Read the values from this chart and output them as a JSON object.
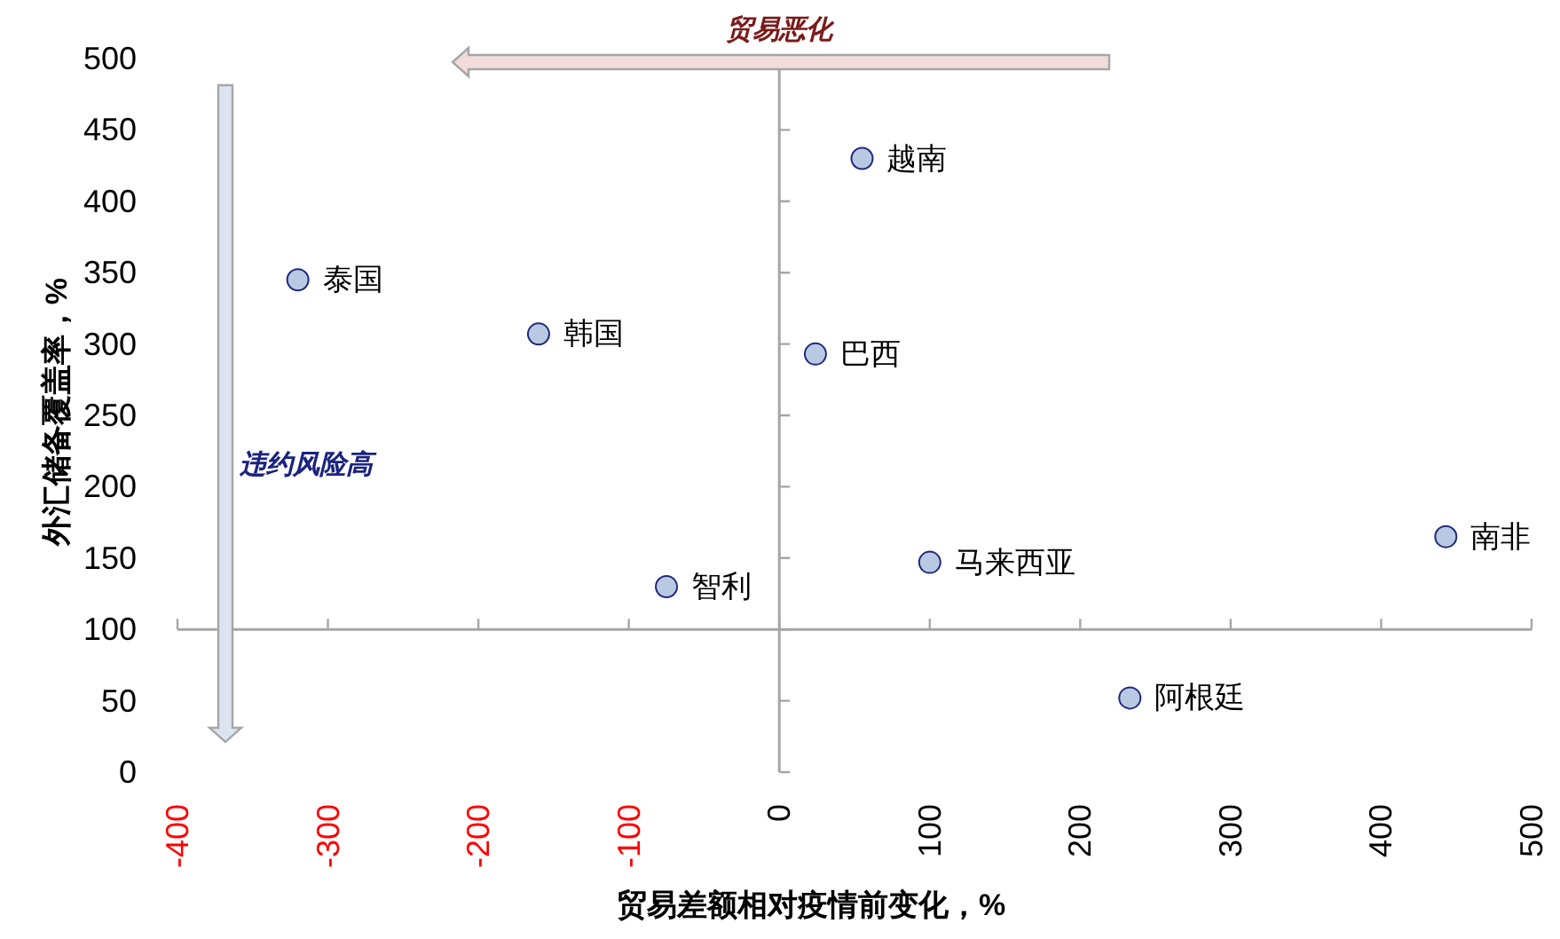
{
  "chart_data": {
    "type": "scatter",
    "xlabel": "贸易差额相对疫情前变化，%",
    "ylabel": "外汇储备覆盖率，%",
    "series": [
      {
        "color": "#b9c9e3",
        "x": [
          -320,
          -160,
          55,
          24,
          -75,
          100,
          443,
          233
        ],
        "values": [
          345,
          307,
          430,
          293,
          130,
          147,
          165,
          52
        ]
      }
    ],
    "marker": "circle",
    "xlim": [
      -400,
      500
    ],
    "xticks": [
      -400,
      -300,
      -200,
      -100,
      0,
      100,
      200,
      300,
      400,
      500
    ],
    "ylim": [
      0,
      500
    ],
    "yticks": [
      0,
      50,
      100,
      150,
      200,
      250,
      300,
      350,
      400,
      450,
      500
    ],
    "ref_lines": [
      {
        "axis": "y",
        "value": 100,
        "color": "#a6a6a6"
      },
      {
        "axis": "x",
        "value": 0,
        "color": "#a6a6a6"
      }
    ],
    "annotations": [
      "贸易恶化",
      "违约风险高",
      {
        "text": "泰国",
        "x": -320,
        "y": 345
      },
      {
        "text": "韩国",
        "x": -160,
        "y": 307
      },
      {
        "text": "越南",
        "x": 55,
        "y": 430
      },
      {
        "text": "巴西",
        "x": 24,
        "y": 293
      },
      {
        "text": "智利",
        "x": -75,
        "y": 130
      },
      {
        "text": "马来西亚",
        "x": 100,
        "y": 147
      },
      {
        "text": "南非",
        "x": 443,
        "y": 165
      },
      {
        "text": "阿根廷",
        "x": 233,
        "y": 52
      }
    ]
  }
}
